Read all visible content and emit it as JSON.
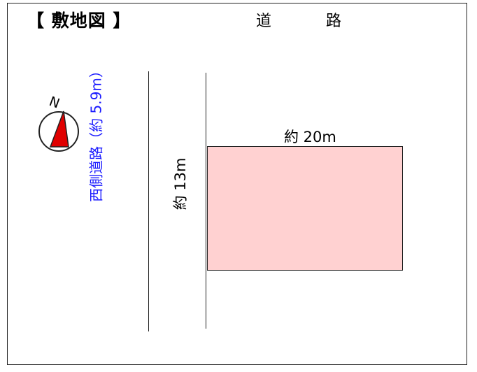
{
  "title": "【 敷地図 】",
  "road_top": {
    "char1": "道",
    "char2": "路"
  },
  "west_road_label": "西側道路（約 5.9m）",
  "lot": {
    "width_label": "約 20m",
    "depth_label": "約 13m",
    "fill_color": "#ffd1d1"
  },
  "compass": {
    "north_label": "N",
    "needle_color": "#e00000"
  },
  "colors": {
    "west_road_text": "#1a1aff"
  }
}
